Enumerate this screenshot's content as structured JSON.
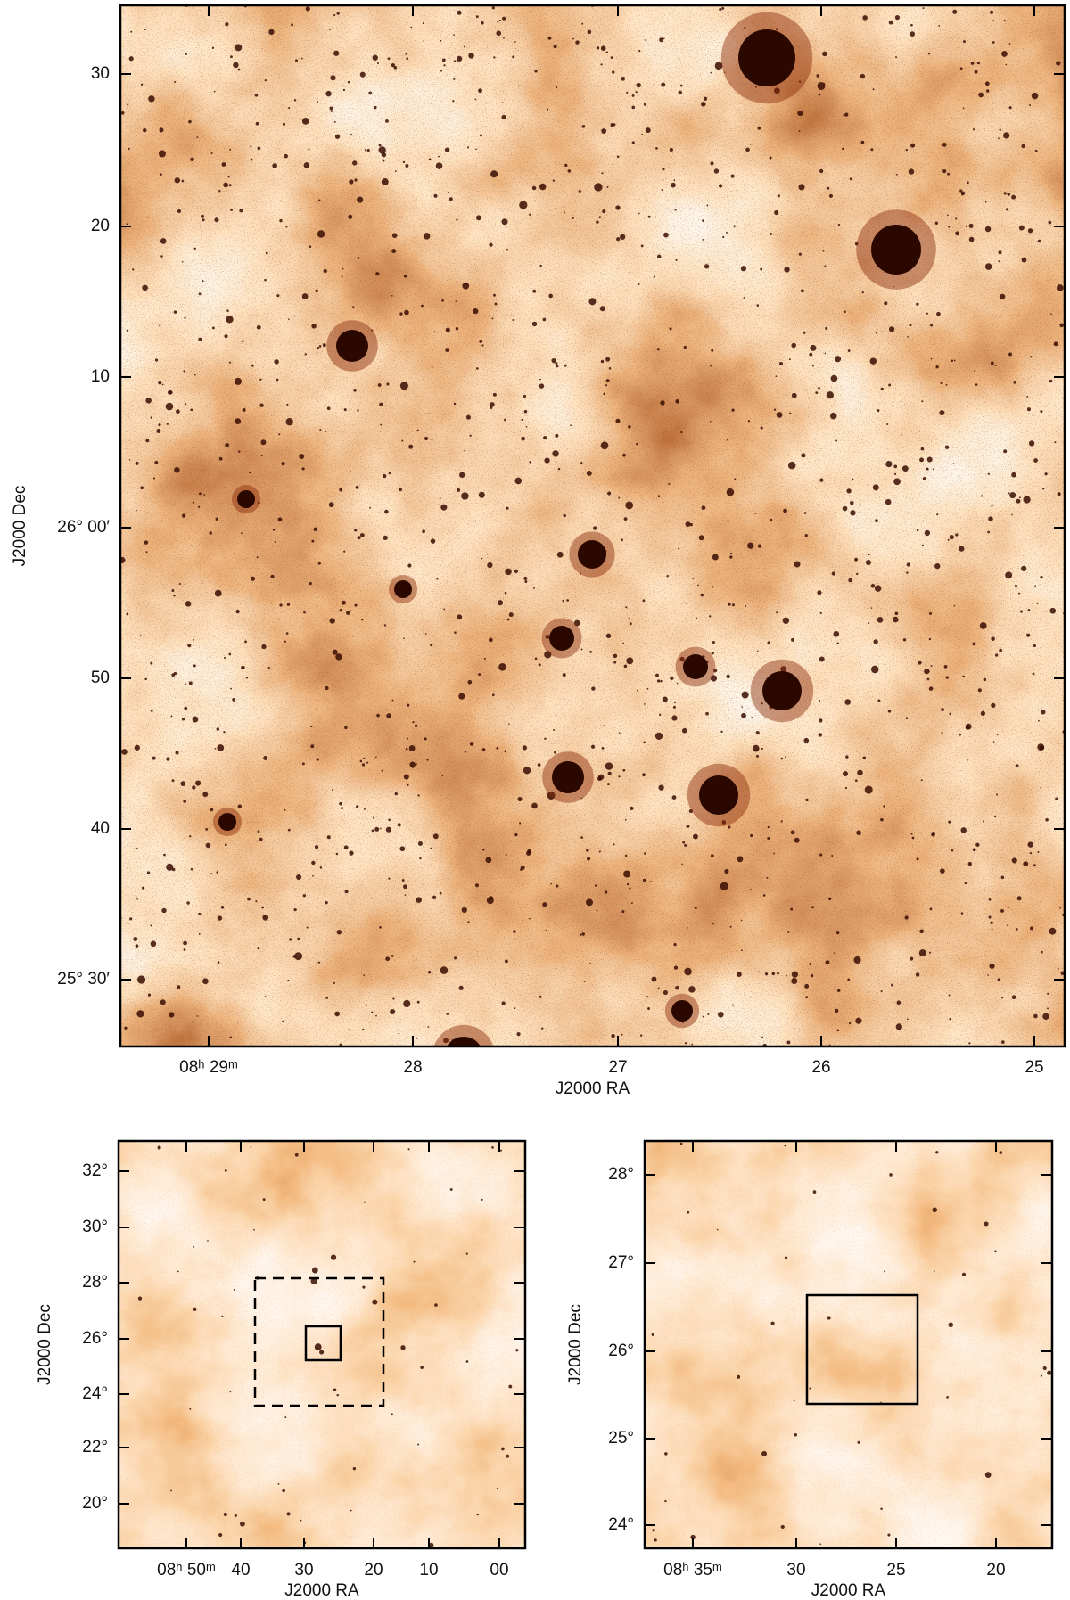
{
  "figure": {
    "top": {
      "x_label": "J2000 RA",
      "y_label": "J2000 Dec",
      "x_ticks": [
        "08ʰ 29ᵐ",
        "28",
        "27",
        "26",
        "25"
      ],
      "y_ticks": [
        "30",
        "20",
        "10",
        "26° 00′",
        "50",
        "40",
        "25° 30′"
      ]
    },
    "bottom_left": {
      "x_label": "J2000 RA",
      "y_label": "J2000 Dec",
      "x_ticks": [
        "08ʰ 50ᵐ",
        "40",
        "30",
        "20",
        "10",
        "00"
      ],
      "y_ticks": [
        "32°",
        "30°",
        "28°",
        "26°",
        "24°",
        "22°",
        "20°"
      ]
    },
    "bottom_right": {
      "x_label": "J2000 RA",
      "y_label": "J2000 Dec",
      "x_ticks": [
        "08ʰ 35ᵐ",
        "30",
        "25",
        "20"
      ],
      "y_ticks": [
        "28°",
        "27°",
        "26°",
        "25°",
        "24°"
      ]
    }
  }
}
